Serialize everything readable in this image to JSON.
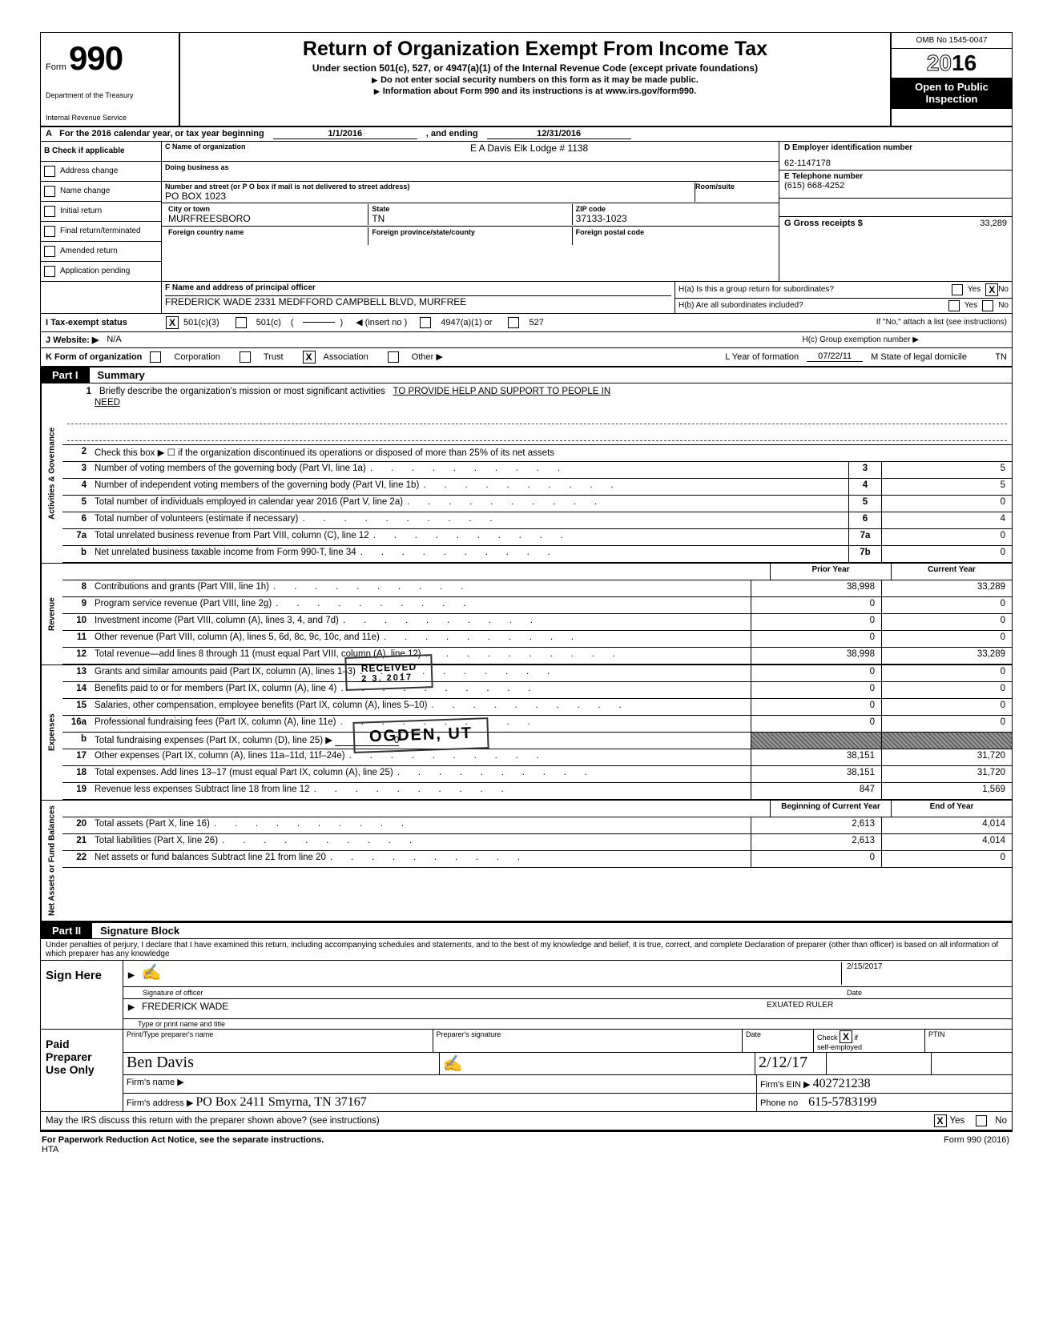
{
  "form": {
    "number_word": "Form",
    "number": "990",
    "dept1": "Department of the Treasury",
    "dept2": "Internal Revenue Service",
    "title": "Return of Organization Exempt From Income Tax",
    "subtitle": "Under section 501(c), 527, or 4947(a)(1) of the Internal Revenue Code (except private foundations)",
    "note1": "Do not enter social security numbers on this form as it may be made public.",
    "note2": "Information about Form 990 and its instructions is at www.irs.gov/form990.",
    "omb": "OMB No 1545-0047",
    "year_outline": "20",
    "year_bold": "16",
    "open1": "Open to Public",
    "open2": "Inspection"
  },
  "lineA": {
    "prefix": "A",
    "text": "For the 2016 calendar year, or tax year beginning",
    "begin": "1/1/2016",
    "mid": ", and ending",
    "end": "12/31/2016"
  },
  "B": {
    "header": "Check if applicable",
    "prefix": "B",
    "items": [
      "Address change",
      "Name change",
      "Initial return",
      "Final return/terminated",
      "Amended return",
      "Application pending"
    ]
  },
  "C": {
    "lbl_name": "C  Name of organization",
    "name": "E A Davis Elk Lodge # 1138",
    "lbl_dba": "Doing business as",
    "dba": "",
    "lbl_street": "Number and street (or P O  box if mail is not delivered to street address)",
    "street": "PO BOX 1023",
    "lbl_room": "Room/suite",
    "room": "",
    "lbl_city": "City or town",
    "city": "MURFREESBORO",
    "lbl_state": "State",
    "state": "TN",
    "lbl_zip": "ZIP code",
    "zip": "37133-1023",
    "lbl_fc": "Foreign country name",
    "lbl_fp": "Foreign province/state/county",
    "lbl_fz": "Foreign postal code"
  },
  "D": {
    "lbl": "D   Employer identification number",
    "val": "62-1147178"
  },
  "E": {
    "lbl": "E   Telephone number",
    "val": "(615) 668-4252"
  },
  "G": {
    "lbl": "G   Gross receipts $",
    "val": "33,289"
  },
  "F": {
    "lbl": "F  Name and address of principal officer",
    "val": "FREDERICK WADE 2331 MEDFFORD CAMPBELL BLVD, MURFREE"
  },
  "H": {
    "a": "H(a) Is this a group return for subordinates?",
    "a_yes": "Yes",
    "a_no": "No",
    "a_checked": "X",
    "b": "H(b) Are all subordinates included?",
    "b_yes": "Yes",
    "b_no": "No",
    "note": "If \"No,\" attach a list (see instructions)",
    "c": "H(c) Group exemption number ▶"
  },
  "I": {
    "lbl": "I     Tax-exempt status",
    "opt1": "501(c)(3)",
    "opt1_x": "X",
    "opt2": "501(c)",
    "insert": "◀ (insert no )",
    "opt3": "4947(a)(1) or",
    "opt4": "527"
  },
  "J": {
    "lbl": "J   Website: ▶",
    "val": "N/A"
  },
  "K": {
    "lbl": "K  Form of organization",
    "opts": [
      "Corporation",
      "Trust",
      "Association",
      "Other ▶"
    ],
    "checked_idx": 2,
    "L": "L Year of formation",
    "Lval": "07/22/11",
    "M": "M State of legal domicile",
    "Mval": "TN"
  },
  "partI": {
    "num": "Part I",
    "title": "Summary"
  },
  "summary": {
    "sections": [
      {
        "vlabel": "Activities & Governance",
        "rows": [
          {
            "ln": "1",
            "desc_pre": "Briefly describe the organization's mission or most significant activities",
            "val_underline": "TO PROVIDE HELP AND SUPPORT TO PEOPLE IN",
            "cont": "NEED",
            "type": "mission"
          },
          {
            "ln": "2",
            "desc": "Check this box  ▶ ☐  if the organization discontinued its operations or disposed of more than 25% of its net assets",
            "type": "plain"
          },
          {
            "ln": "3",
            "desc": "Number of voting members of the governing body (Part VI, line 1a)",
            "box": "3",
            "num2": "5",
            "type": "box1"
          },
          {
            "ln": "4",
            "desc": "Number of independent voting members of the governing body (Part VI, line 1b)",
            "box": "4",
            "num2": "5",
            "type": "box1"
          },
          {
            "ln": "5",
            "desc": "Total number of individuals employed in calendar year 2016 (Part V, line 2a)",
            "box": "5",
            "num2": "0",
            "type": "box1"
          },
          {
            "ln": "6",
            "desc": "Total number of volunteers (estimate if necessary)",
            "box": "6",
            "num2": "4",
            "type": "box1"
          },
          {
            "ln": "7a",
            "desc": "Total unrelated business revenue from Part VIII, column (C), line 12",
            "box": "7a",
            "num2": "0",
            "type": "box1"
          },
          {
            "ln": "b",
            "desc": "Net unrelated business taxable income from Form 990-T, line 34",
            "box": "7b",
            "num2": "0",
            "type": "box1"
          }
        ]
      },
      {
        "vlabel": "Revenue",
        "header": {
          "c1": "Prior Year",
          "c2": "Current Year"
        },
        "rows": [
          {
            "ln": "8",
            "desc": "Contributions and grants (Part VIII, line 1h)",
            "num1": "38,998",
            "num2": "33,289"
          },
          {
            "ln": "9",
            "desc": "Program service revenue (Part VIII, line 2g)",
            "num1": "0",
            "num2": "0"
          },
          {
            "ln": "10",
            "desc": "Investment income (Part VIII, column (A), lines 3, 4, and 7d)",
            "num1": "0",
            "num2": "0"
          },
          {
            "ln": "11",
            "desc": "Other revenue (Part VIII, column (A), lines 5, 6d, 8c, 9c, 10c, and 11e)",
            "num1": "0",
            "num2": "0"
          },
          {
            "ln": "12",
            "desc": "Total revenue—add lines 8 through 11 (must equal Part VIII, column (A), line 12)",
            "num1": "38,998",
            "num2": "33,289"
          }
        ]
      },
      {
        "vlabel": "Expenses",
        "rows": [
          {
            "ln": "13",
            "desc": "Grants and similar amounts paid (Part IX, column (A), lines 1–3)",
            "num1": "0",
            "num2": "0"
          },
          {
            "ln": "14",
            "desc": "Benefits paid to or for members (Part IX, column (A), line 4)",
            "num1": "0",
            "num2": "0"
          },
          {
            "ln": "15",
            "desc": "Salaries, other compensation, employee benefits (Part IX, column (A), lines 5–10)",
            "num1": "0",
            "num2": "0"
          },
          {
            "ln": "16a",
            "desc": "Professional fundraising fees (Part IX, column (A), line 11e)",
            "num1": "0",
            "num2": "0"
          },
          {
            "ln": "b",
            "desc": "Total fundraising expenses (Part IX, column (D), line 25) ▶",
            "inline": "0",
            "shade": true
          },
          {
            "ln": "17",
            "desc": "Other expenses (Part IX, column (A), lines 11a–11d, 11f–24e)",
            "num1": "38,151",
            "num2": "31,720"
          },
          {
            "ln": "18",
            "desc": "Total expenses. Add lines 13–17 (must equal Part IX, column (A), line 25)",
            "num1": "38,151",
            "num2": "31,720"
          },
          {
            "ln": "19",
            "desc": "Revenue less expenses  Subtract line 18 from line 12",
            "num1": "847",
            "num2": "1,569"
          }
        ]
      },
      {
        "vlabel": "Net Assets or Fund Balances",
        "header": {
          "c1": "Beginning of Current Year",
          "c2": "End of Year"
        },
        "rows": [
          {
            "ln": "20",
            "desc": "Total assets (Part X, line 16)",
            "num1": "2,613",
            "num2": "4,014"
          },
          {
            "ln": "21",
            "desc": "Total liabilities (Part X, line 26)",
            "num1": "2,613",
            "num2": "4,014"
          },
          {
            "ln": "22",
            "desc": "Net assets or fund balances  Subtract line 21 from line 20",
            "num1": "0",
            "num2": "0"
          }
        ]
      }
    ]
  },
  "stamps": {
    "received": "RECEIVED",
    "date_line": "2 3. 2017",
    "ogden": "OGDEN, UT"
  },
  "partII": {
    "num": "Part II",
    "title": "Signature Block"
  },
  "perjury": "Under penalties of perjury, I declare that I have examined this return, including accompanying schedules and statements, and to the best of my knowledge and belief, it is true, correct, and complete  Declaration of preparer (other than officer) is based on all information of which preparer has any knowledge",
  "sign": {
    "left": "Sign Here",
    "sig_lbl": "Signature of officer",
    "date_lbl": "Date",
    "date_val": "2/15/2017",
    "name": "FREDERICK WADE",
    "title": "EXUATED RULER",
    "name_lbl": "Type or print name and title"
  },
  "paid": {
    "left1": "Paid",
    "left2": "Preparer",
    "left3": "Use Only",
    "h1": "Print/Type preparer's name",
    "h2": "Preparer's signature",
    "h3": "Date",
    "h4": "Check           if self-employed",
    "h4x": "X",
    "h5": "PTIN",
    "name_hand": "Ben Davis",
    "date_hand": "2/12/17",
    "firm_lbl": "Firm's name    ▶",
    "ein_lbl": "Firm's EIN ▶",
    "ein_val": "402721238",
    "addr_lbl": "Firm's address ▶",
    "addr_val": "PO Box 2411    Smyrna, TN 37167",
    "phone_lbl": "Phone no",
    "phone_val": "615-5783199"
  },
  "irs_discuss": {
    "text": "May the IRS discuss this return with the preparer shown above? (see instructions)",
    "yes": "Yes",
    "no": "No",
    "x": "X"
  },
  "footer": {
    "left": "For Paperwork Reduction Act Notice, see the separate instructions.",
    "hta": "HTA",
    "right": "Form 990 (2016)"
  },
  "colors": {
    "black": "#000000",
    "shade": "#777777"
  }
}
